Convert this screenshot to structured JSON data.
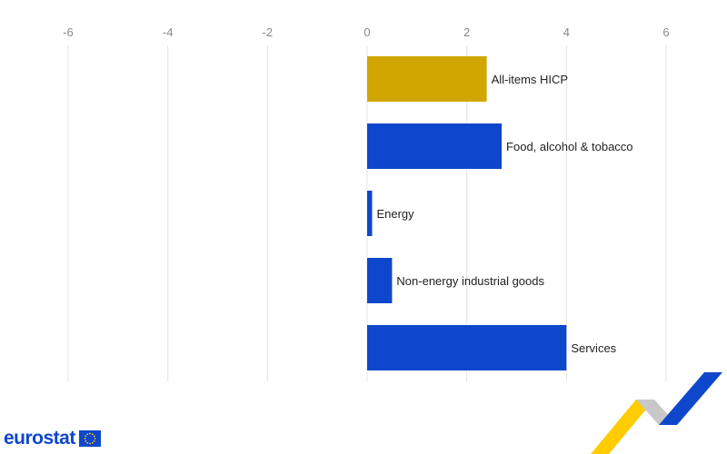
{
  "chart_data": {
    "type": "bar",
    "orientation": "horizontal",
    "categories": [
      "All-items HICP",
      "Food, alcohol & tobacco",
      "Energy",
      "Non-energy industrial goods",
      "Services"
    ],
    "values": [
      2.4,
      2.7,
      0.1,
      0.5,
      4.0
    ],
    "colors": [
      "#d1a600",
      "#0e47cb",
      "#0e47cb",
      "#0e47cb",
      "#0e47cb"
    ],
    "xlim": [
      -6,
      6
    ],
    "xticks": [
      "-6",
      "-4",
      "-2",
      "0",
      "2",
      "4",
      "6"
    ],
    "title": "",
    "xlabel": "",
    "ylabel": "",
    "grid": true,
    "axis_position": "top"
  },
  "branding": {
    "logo_text": "eurostat",
    "brand_blue": "#0e47cb",
    "brand_yellow": "#ffcc00"
  }
}
